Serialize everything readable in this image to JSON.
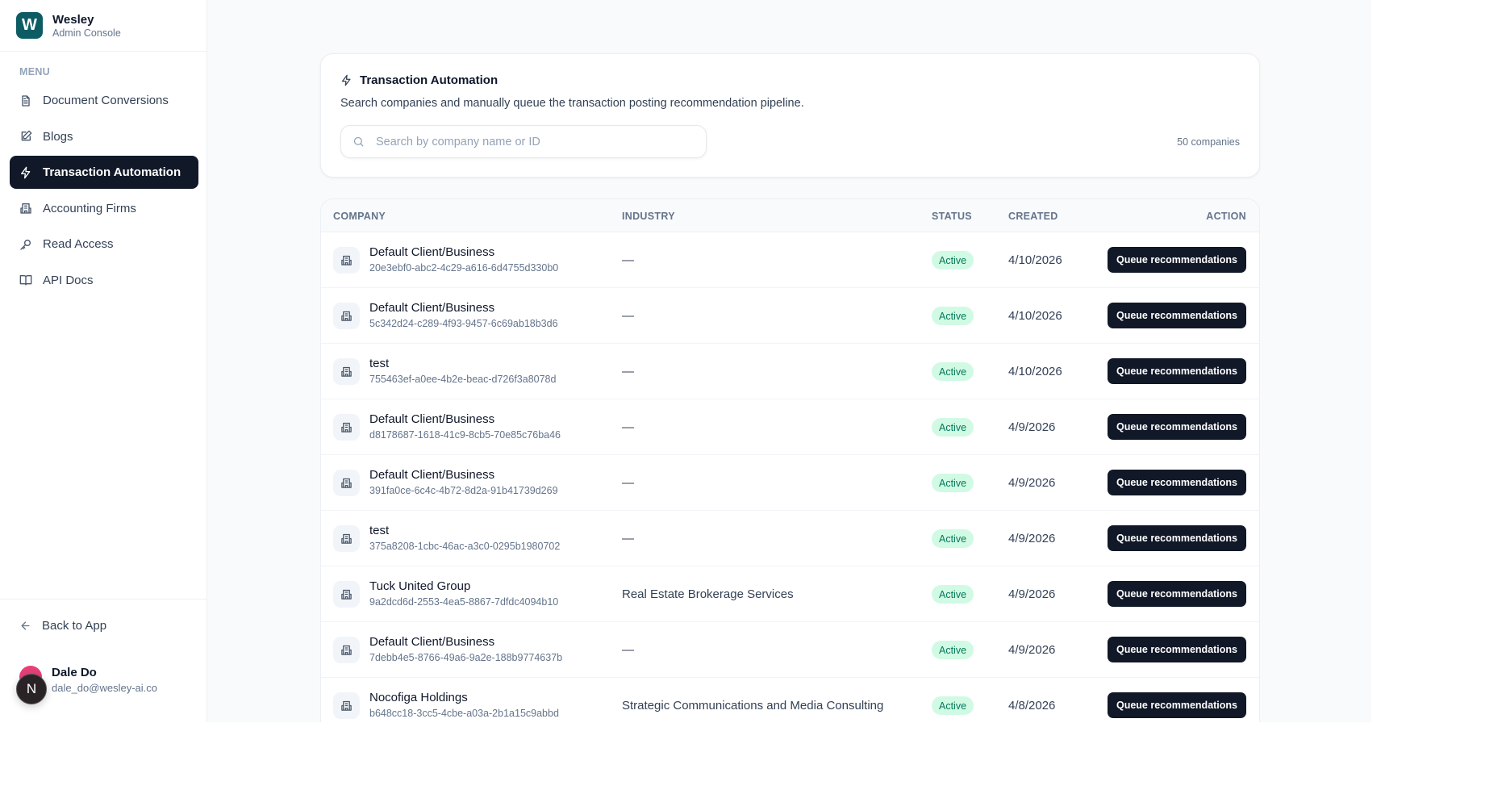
{
  "brand": {
    "logo_letter": "W",
    "name": "Wesley",
    "subtitle": "Admin Console",
    "color": "#0d5c63"
  },
  "sidebar": {
    "menu_label": "MENU",
    "items": [
      {
        "label": "Document Conversions",
        "icon": "file-text-icon",
        "active": false
      },
      {
        "label": "Blogs",
        "icon": "edit-icon",
        "active": false
      },
      {
        "label": "Transaction Automation",
        "icon": "zap-icon",
        "active": true
      },
      {
        "label": "Accounting Firms",
        "icon": "building-icon",
        "active": false
      },
      {
        "label": "Read Access",
        "icon": "key-icon",
        "active": false
      },
      {
        "label": "API Docs",
        "icon": "book-icon",
        "active": false
      }
    ],
    "back_label": "Back to App",
    "user": {
      "avatar_letter": "N",
      "name": "Dale Do",
      "email": "dale_do@wesley-ai.co"
    }
  },
  "header_card": {
    "title": "Transaction Automation",
    "description": "Search companies and manually queue the transaction posting recommendation pipeline.",
    "search_placeholder": "Search by company name or ID",
    "search_value": "",
    "count": "50 companies"
  },
  "table": {
    "columns": [
      "COMPANY",
      "INDUSTRY",
      "STATUS",
      "CREATED",
      "ACTION"
    ],
    "rows": [
      {
        "name": "Default Client/Business",
        "id": "20e3ebf0-abc2-4c29-a616-6d4755d330b0",
        "industry": "—",
        "status": "Active",
        "created": "4/10/2026",
        "action": "Queue recommendations"
      },
      {
        "name": "Default Client/Business",
        "id": "5c342d24-c289-4f93-9457-6c69ab18b3d6",
        "industry": "—",
        "status": "Active",
        "created": "4/10/2026",
        "action": "Queue recommendations"
      },
      {
        "name": "test",
        "id": "755463ef-a0ee-4b2e-beac-d726f3a8078d",
        "industry": "—",
        "status": "Active",
        "created": "4/10/2026",
        "action": "Queue recommendations"
      },
      {
        "name": "Default Client/Business",
        "id": "d8178687-1618-41c9-8cb5-70e85c76ba46",
        "industry": "—",
        "status": "Active",
        "created": "4/9/2026",
        "action": "Queue recommendations"
      },
      {
        "name": "Default Client/Business",
        "id": "391fa0ce-6c4c-4b72-8d2a-91b41739d269",
        "industry": "—",
        "status": "Active",
        "created": "4/9/2026",
        "action": "Queue recommendations"
      },
      {
        "name": "test",
        "id": "375a8208-1cbc-46ac-a3c0-0295b1980702",
        "industry": "—",
        "status": "Active",
        "created": "4/9/2026",
        "action": "Queue recommendations"
      },
      {
        "name": "Tuck United Group",
        "id": "9a2dcd6d-2553-4ea5-8867-7dfdc4094b10",
        "industry": "Real Estate Brokerage Services",
        "status": "Active",
        "created": "4/9/2026",
        "action": "Queue recommendations"
      },
      {
        "name": "Default Client/Business",
        "id": "7debb4e5-8766-49a6-9a2e-188b9774637b",
        "industry": "—",
        "status": "Active",
        "created": "4/9/2026",
        "action": "Queue recommendations"
      },
      {
        "name": "Nocofiga Holdings",
        "id": "b648cc18-3cc5-4cbe-a03a-2b1a15c9abbd",
        "industry": "Strategic Communications and Media Consulting",
        "status": "Active",
        "created": "4/8/2026",
        "action": "Queue recommendations"
      }
    ]
  }
}
